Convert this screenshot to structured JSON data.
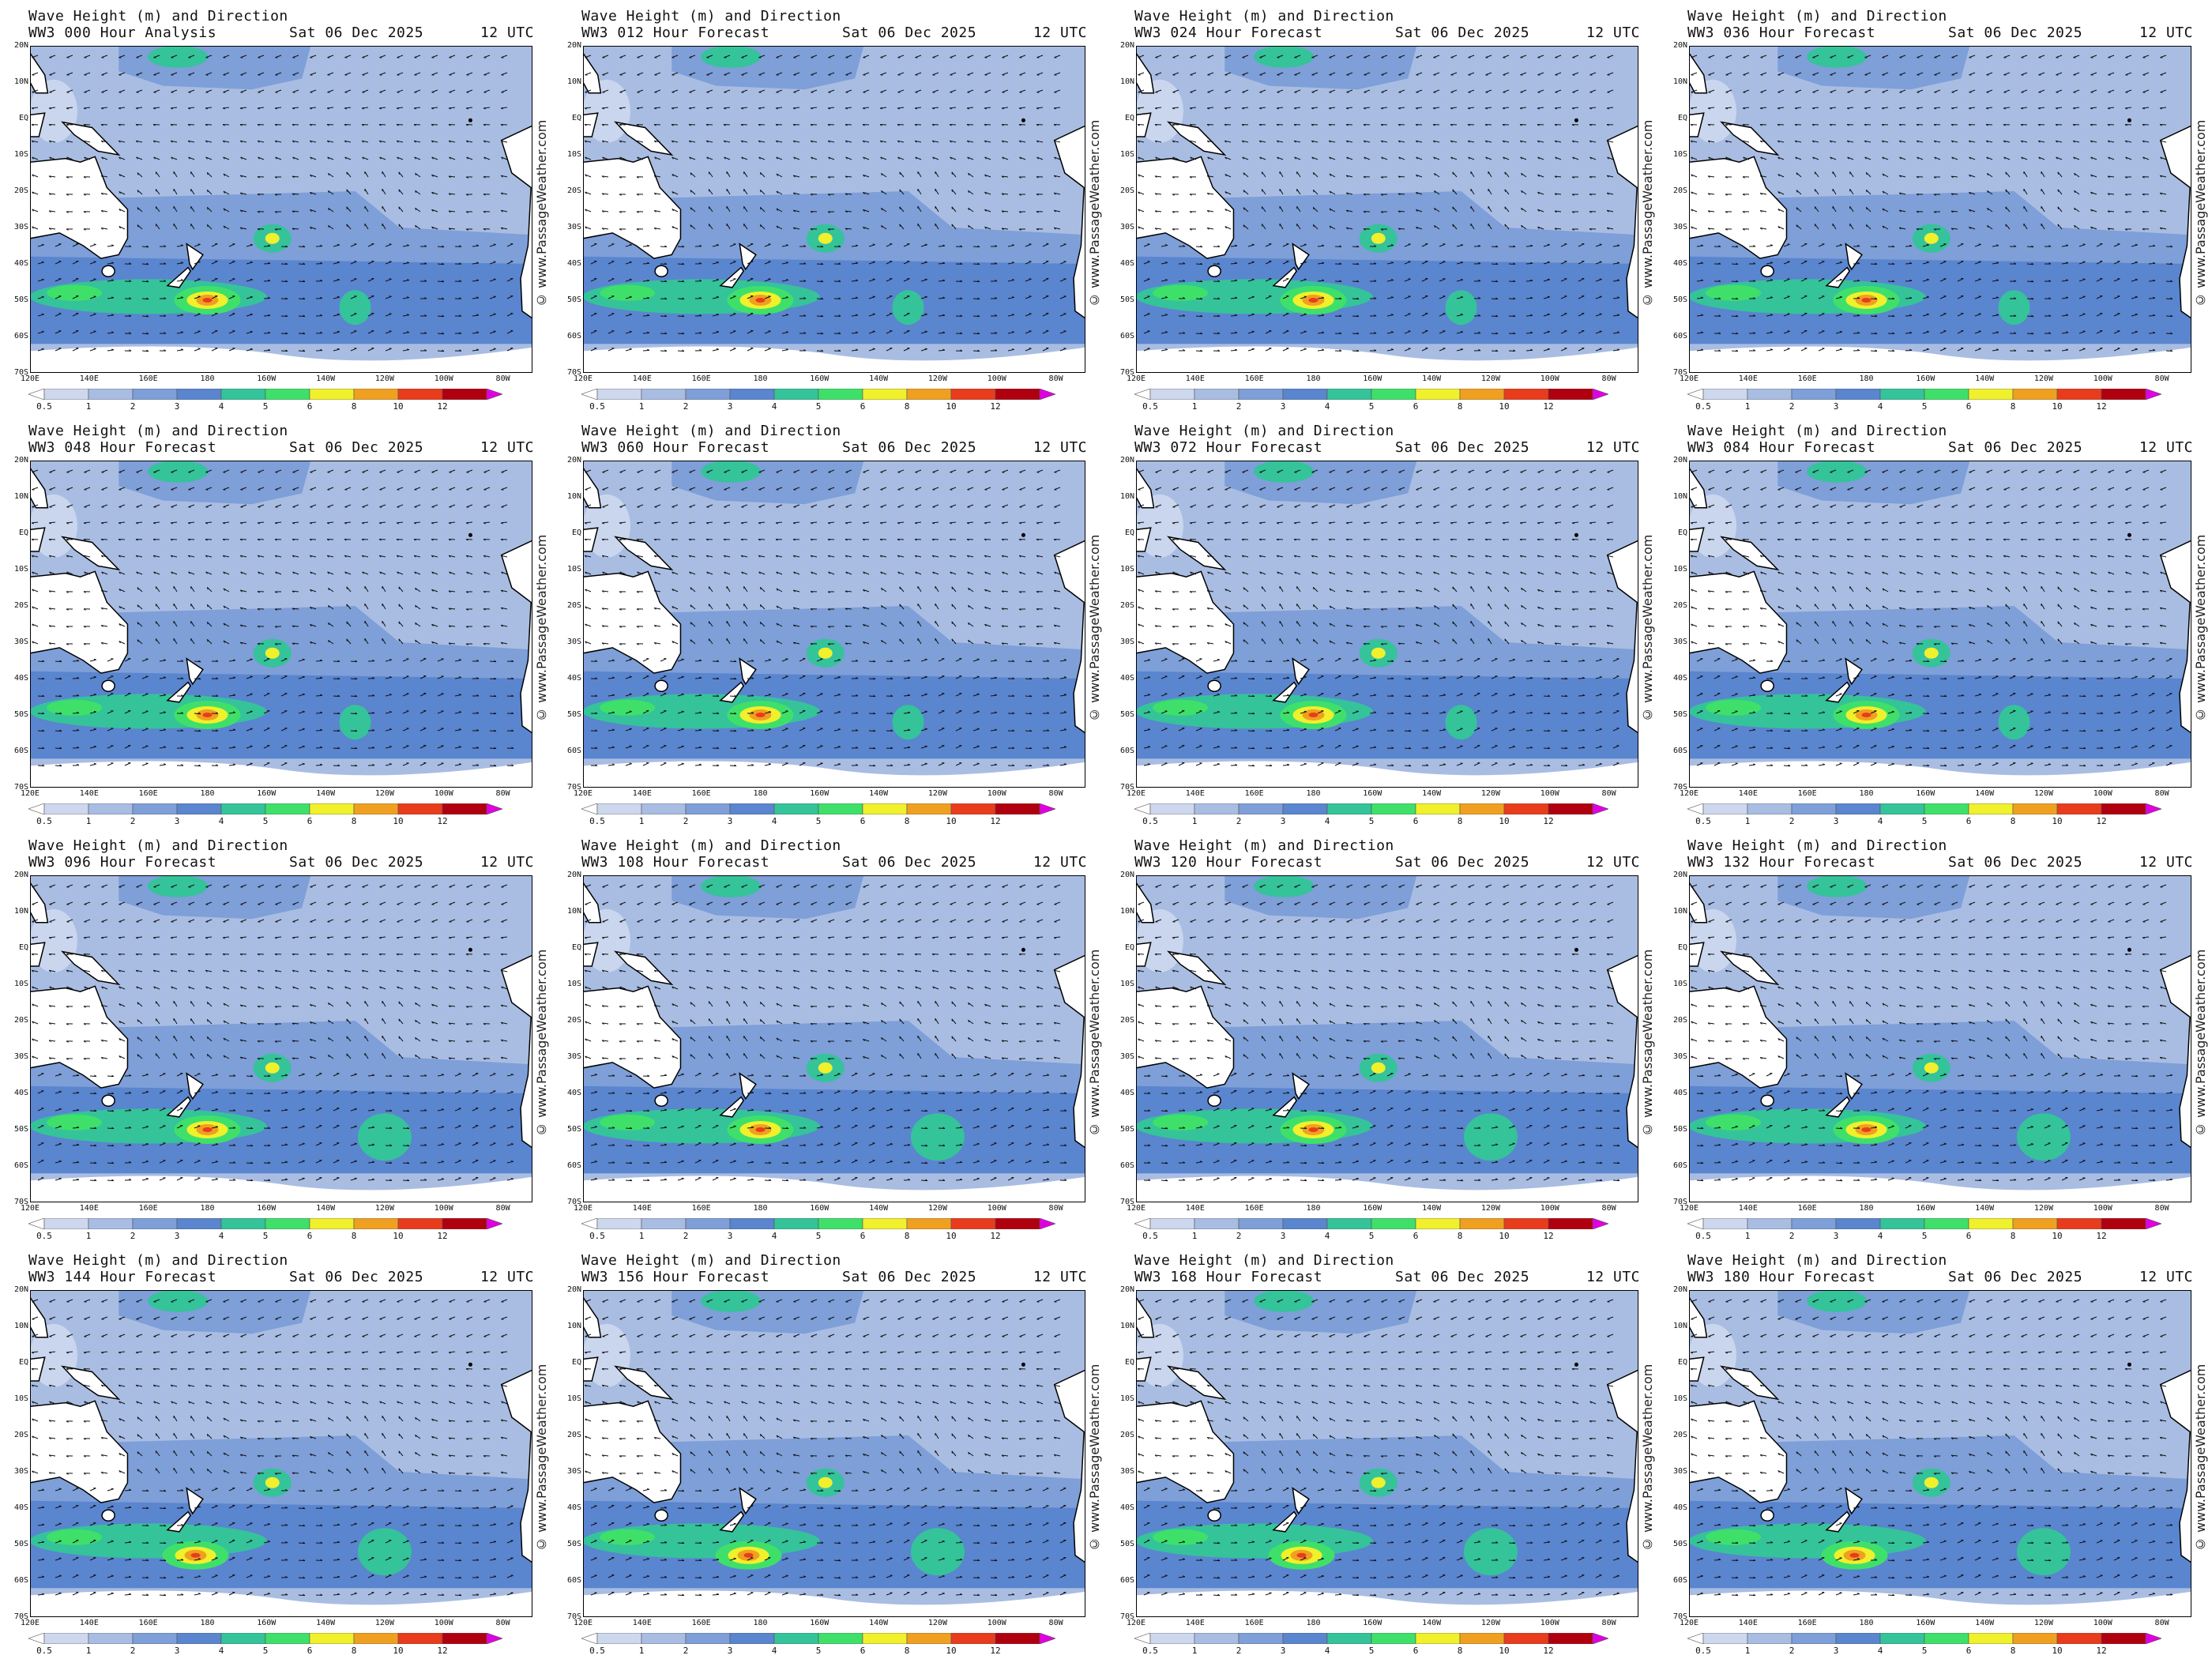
{
  "panel_title": "Wave Height (m) and Direction",
  "run_date": "Sat 06 Dec 2025",
  "run_time": "12 UTC",
  "credit": "© www.PassageWeather.com",
  "panels": [
    {
      "label": "WW3 000 Hour Analysis"
    },
    {
      "label": "WW3 012 Hour Forecast"
    },
    {
      "label": "WW3 024 Hour Forecast"
    },
    {
      "label": "WW3 036 Hour Forecast"
    },
    {
      "label": "WW3 048 Hour Forecast"
    },
    {
      "label": "WW3 060 Hour Forecast"
    },
    {
      "label": "WW3 072 Hour Forecast"
    },
    {
      "label": "WW3 084 Hour Forecast"
    },
    {
      "label": "WW3 096 Hour Forecast"
    },
    {
      "label": "WW3 108 Hour Forecast"
    },
    {
      "label": "WW3 120 Hour Forecast"
    },
    {
      "label": "WW3 132 Hour Forecast"
    },
    {
      "label": "WW3 144 Hour Forecast"
    },
    {
      "label": "WW3 156 Hour Forecast"
    },
    {
      "label": "WW3 168 Hour Forecast"
    },
    {
      "label": "WW3 180 Hour Forecast"
    }
  ],
  "lat_labels": [
    "20N",
    "10N",
    "EQ",
    "10S",
    "20S",
    "30S",
    "40S",
    "50S",
    "60S",
    "70S"
  ],
  "lon_labels": [
    "120E",
    "140E",
    "160E",
    "180",
    "160W",
    "140W",
    "120W",
    "100W",
    "80W"
  ],
  "colorbar": {
    "ticks": [
      "0.5",
      "1",
      "2",
      "3",
      "4",
      "5",
      "6",
      "8",
      "10",
      "12"
    ],
    "colors": [
      "#ffffff",
      "#cdd8ee",
      "#a9bde3",
      "#7e9fd8",
      "#5a85cf",
      "#35c39a",
      "#3fe06a",
      "#f0f02c",
      "#f0a020",
      "#e83c1c",
      "#b00010",
      "#e000e0"
    ]
  },
  "palette": {
    "land": "#ffffff",
    "coast": "#000000",
    "sea_low": "#a9bde3",
    "sea_mid": "#7e9fd8",
    "sea_high": "#5a85cf",
    "green": "#35c39a",
    "lime": "#3fe06a",
    "yellow": "#f0f02c",
    "orange": "#f0a020",
    "red": "#e83c1c"
  }
}
